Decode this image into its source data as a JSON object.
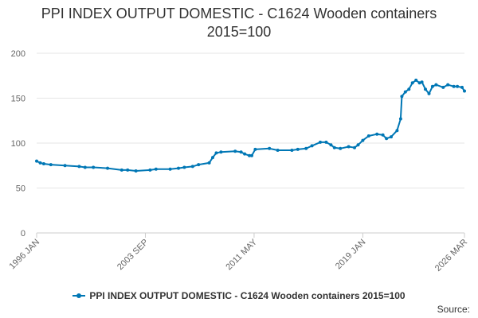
{
  "chart_data": {
    "type": "line",
    "title_lines": [
      "PPI INDEX OUTPUT DOMESTIC - C1624 Wooden containers",
      "2015=100"
    ],
    "xlabel": "",
    "ylabel": "",
    "ylim": [
      0,
      200
    ],
    "yticks": [
      "0",
      "50",
      "100",
      "150",
      "200"
    ],
    "xlim": [
      "1996 JAN",
      "2026 MAR"
    ],
    "xticks": [
      "1996 JAN",
      "2003 SEP",
      "2011 MAY",
      "2019 JAN",
      "2026 MAR"
    ],
    "grid": "horizontal",
    "legend_position": "bottom",
    "series": [
      {
        "name": "PPI INDEX OUTPUT DOMESTIC - C1624 Wooden containers 2015=100",
        "color": "#0077b5",
        "points": [
          [
            "1996-01",
            80
          ],
          [
            "1996-04",
            78
          ],
          [
            "1996-07",
            77
          ],
          [
            "1997-01",
            76
          ],
          [
            "1998-01",
            75
          ],
          [
            "1999-01",
            74
          ],
          [
            "1999-06",
            73
          ],
          [
            "2000-01",
            73
          ],
          [
            "2001-01",
            72
          ],
          [
            "2002-01",
            70
          ],
          [
            "2002-06",
            70
          ],
          [
            "2003-01",
            69
          ],
          [
            "2004-01",
            70
          ],
          [
            "2004-06",
            71
          ],
          [
            "2005-06",
            71
          ],
          [
            "2006-01",
            72
          ],
          [
            "2006-06",
            73
          ],
          [
            "2007-01",
            74
          ],
          [
            "2007-06",
            76
          ],
          [
            "2008-03",
            78
          ],
          [
            "2008-06",
            84
          ],
          [
            "2008-09",
            89
          ],
          [
            "2009-01",
            90
          ],
          [
            "2010-01",
            91
          ],
          [
            "2010-06",
            90
          ],
          [
            "2010-09",
            88
          ],
          [
            "2011-01",
            86
          ],
          [
            "2011-03",
            86
          ],
          [
            "2011-06",
            93
          ],
          [
            "2012-06",
            94
          ],
          [
            "2013-01",
            92
          ],
          [
            "2014-01",
            92
          ],
          [
            "2014-06",
            93
          ],
          [
            "2015-01",
            94
          ],
          [
            "2015-06",
            97
          ],
          [
            "2016-01",
            101
          ],
          [
            "2016-06",
            101
          ],
          [
            "2016-10",
            98
          ],
          [
            "2017-01",
            95
          ],
          [
            "2017-06",
            94
          ],
          [
            "2018-01",
            96
          ],
          [
            "2018-06",
            95
          ],
          [
            "2018-09",
            98
          ],
          [
            "2019-01",
            103
          ],
          [
            "2019-06",
            108
          ],
          [
            "2020-01",
            110
          ],
          [
            "2020-06",
            109
          ],
          [
            "2020-09",
            105
          ],
          [
            "2021-01",
            107
          ],
          [
            "2021-06",
            114
          ],
          [
            "2021-09",
            127
          ],
          [
            "2021-10",
            152
          ],
          [
            "2022-01",
            157
          ],
          [
            "2022-04",
            160
          ],
          [
            "2022-07",
            167
          ],
          [
            "2022-10",
            170
          ],
          [
            "2023-01",
            167
          ],
          [
            "2023-03",
            168
          ],
          [
            "2023-06",
            160
          ],
          [
            "2023-09",
            155
          ],
          [
            "2023-12",
            163
          ],
          [
            "2024-03",
            165
          ],
          [
            "2024-09",
            162
          ],
          [
            "2025-01",
            165
          ],
          [
            "2025-06",
            163
          ],
          [
            "2025-09",
            163
          ],
          [
            "2026-01",
            162
          ],
          [
            "2026-03",
            158
          ]
        ]
      }
    ]
  },
  "legend": {
    "label": "PPI INDEX OUTPUT DOMESTIC - C1624 Wooden containers 2015=100"
  },
  "footer": {
    "source_label": "Source:"
  }
}
